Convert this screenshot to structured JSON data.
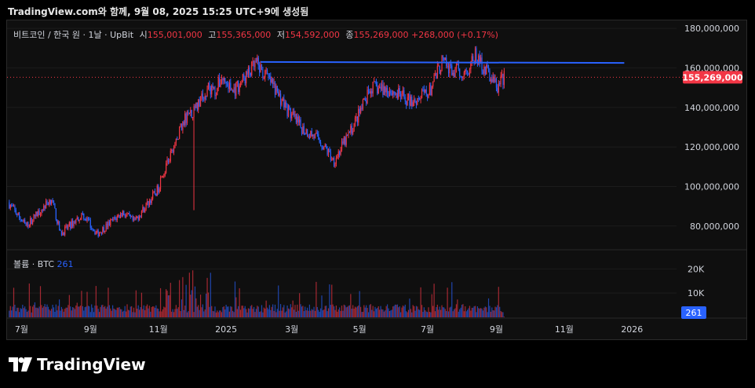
{
  "header": {
    "stamp": "TradingView.com와 함께, 9월 08, 2025 15:25 UTC+9에 생성됨"
  },
  "legend": {
    "symbol": "비트코인 / 한국 원 · 1날 · UpBit",
    "open_label": "시",
    "open": "155,001,000",
    "high_label": "고",
    "high": "155,365,000",
    "low_label": "저",
    "low": "154,592,000",
    "close_label": "종",
    "close": "155,269,000",
    "change": "+268,000 (+0.17%)"
  },
  "volume_legend": {
    "name": "볼륨 · BTC",
    "value": "261"
  },
  "brand": {
    "name": "TradingView"
  },
  "colors": {
    "up": "#f23645",
    "down": "#2962ff",
    "price_badge": "#f23645",
    "volume_badge": "#2962ff",
    "trendline": "#2962ff"
  },
  "chart_data": {
    "type": "candlestick",
    "price_axis": {
      "ticks": [
        80000000,
        100000000,
        120000000,
        140000000,
        160000000,
        180000000
      ],
      "tick_labels": [
        "80,000,000",
        "100,000,000",
        "120,000,000",
        "140,000,000",
        "160,000,000",
        "180,000,000"
      ],
      "range": [
        68000000,
        184000000
      ]
    },
    "volume_axis": {
      "ticks": [
        10000,
        20000
      ],
      "tick_labels": [
        "10K",
        "20K"
      ],
      "range": [
        0,
        24000
      ]
    },
    "time_axis": {
      "labels": [
        "7월",
        "9월",
        "11월",
        "2025",
        "3월",
        "5월",
        "7월",
        "9월",
        "11월",
        "2026"
      ],
      "dates": [
        "2024-07-01",
        "2024-09-01",
        "2024-11-01",
        "2025-01-01",
        "2025-03-01",
        "2025-05-01",
        "2025-07-01",
        "2025-09-01",
        "2025-11-01",
        "2026-01-01"
      ]
    },
    "last_price": 155269000,
    "last_price_label": "155,269,000",
    "last_volume": 261,
    "last_volume_label": "261",
    "trendline": {
      "start_date": "2025-02-01",
      "end_date": "2025-12-25",
      "start_price": 163000000,
      "end_price": 162500000
    },
    "close_path": [
      [
        "2024-06-19",
        92000000
      ],
      [
        "2024-07-05",
        80000000
      ],
      [
        "2024-07-28",
        94000000
      ],
      [
        "2024-08-05",
        76000000
      ],
      [
        "2024-08-25",
        86000000
      ],
      [
        "2024-09-07",
        76000000
      ],
      [
        "2024-09-30",
        87000000
      ],
      [
        "2024-10-10",
        82000000
      ],
      [
        "2024-10-31",
        98000000
      ],
      [
        "2024-11-11",
        114000000
      ],
      [
        "2024-11-25",
        135000000
      ],
      [
        "2024-12-05",
        140000000
      ],
      [
        "2024-12-17",
        150000000
      ],
      [
        "2024-12-22",
        148000000
      ],
      [
        "2024-12-28",
        155000000
      ],
      [
        "2025-01-07",
        148000000
      ],
      [
        "2025-01-21",
        157000000
      ],
      [
        "2025-01-28",
        162000000
      ],
      [
        "2025-02-11",
        152000000
      ],
      [
        "2025-02-26",
        138000000
      ],
      [
        "2025-03-09",
        130000000
      ],
      [
        "2025-03-25",
        124000000
      ],
      [
        "2025-04-08",
        113000000
      ],
      [
        "2025-04-23",
        128000000
      ],
      [
        "2025-05-12",
        150000000
      ],
      [
        "2025-05-27",
        149000000
      ],
      [
        "2025-06-16",
        143000000
      ],
      [
        "2025-07-03",
        148000000
      ],
      [
        "2025-07-14",
        163000000
      ],
      [
        "2025-07-23",
        158000000
      ],
      [
        "2025-08-05",
        158000000
      ],
      [
        "2025-08-13",
        166000000
      ],
      [
        "2025-08-24",
        158000000
      ],
      [
        "2025-09-02",
        150000000
      ],
      [
        "2025-09-08",
        155269000
      ]
    ],
    "spikes": [
      {
        "date": "2024-12-03",
        "low": 88000000
      }
    ]
  }
}
